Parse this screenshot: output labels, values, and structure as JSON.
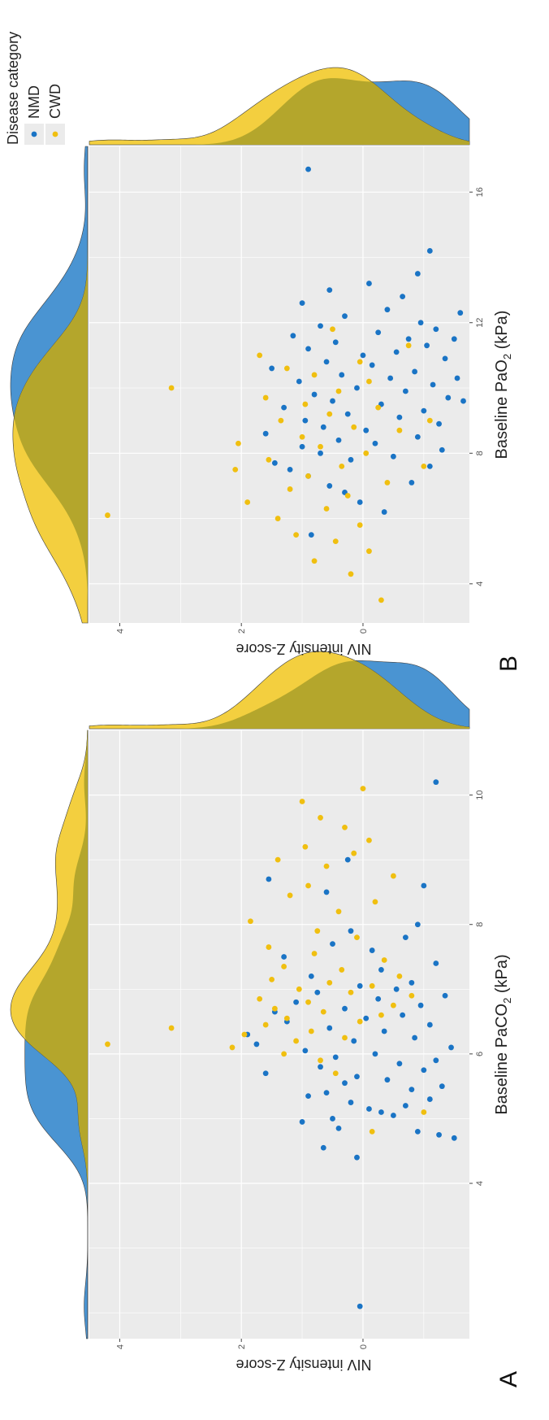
{
  "panels": [
    {
      "letter": "A",
      "xlabel_main": "Baseline PaCO",
      "xlabel_sub": "2",
      "xlabel_unit": " (kPa)"
    },
    {
      "letter": "B",
      "xlabel_main": "Baseline PaO",
      "xlabel_sub": "2",
      "xlabel_unit": " (kPa)"
    }
  ],
  "ylabel": "NIV intensity Z-score",
  "legend": {
    "title": "Disease category",
    "items": [
      {
        "label": "NMD",
        "color": "#1a74c5"
      },
      {
        "label": "CWD",
        "color": "#f0bf10"
      }
    ]
  },
  "colors": {
    "NMD": "#1a74c5",
    "CWD": "#f0bf10",
    "NMD_density": "#4a94d2",
    "CWD_density": "#f3cf3f",
    "overlap_density": "#b4a62c",
    "panel_bg": "#ebebeb",
    "grid": "#ffffff"
  },
  "chart_data": [
    {
      "type": "scatter",
      "panel": "A",
      "xlabel": "Baseline PaCO2 (kPa)",
      "ylabel": "NIV intensity Z-score",
      "xlim": [
        1.6,
        11.0
      ],
      "ylim": [
        -1.75,
        4.5
      ],
      "xticks": [
        4,
        6,
        8,
        10
      ],
      "yticks": [
        0,
        2,
        4
      ],
      "grid": true,
      "marginal_density": true,
      "series": [
        {
          "name": "NMD",
          "points": [
            [
              2.1,
              0.05
            ],
            [
              4.4,
              0.1
            ],
            [
              4.55,
              0.65
            ],
            [
              4.7,
              -1.5
            ],
            [
              4.75,
              -1.25
            ],
            [
              4.8,
              -0.9
            ],
            [
              4.85,
              0.4
            ],
            [
              4.95,
              1.0
            ],
            [
              5.0,
              0.5
            ],
            [
              5.05,
              -0.5
            ],
            [
              5.1,
              -0.3
            ],
            [
              5.15,
              -0.1
            ],
            [
              5.2,
              -0.7
            ],
            [
              5.25,
              0.2
            ],
            [
              5.3,
              -1.1
            ],
            [
              5.35,
              0.9
            ],
            [
              5.4,
              0.6
            ],
            [
              5.45,
              -0.8
            ],
            [
              5.5,
              -1.3
            ],
            [
              5.55,
              0.3
            ],
            [
              5.6,
              -0.4
            ],
            [
              5.65,
              0.1
            ],
            [
              5.7,
              1.6
            ],
            [
              5.75,
              -1.0
            ],
            [
              5.8,
              0.7
            ],
            [
              5.85,
              -0.6
            ],
            [
              5.9,
              -1.2
            ],
            [
              5.95,
              0.45
            ],
            [
              6.0,
              -0.2
            ],
            [
              6.05,
              0.95
            ],
            [
              6.1,
              -1.45
            ],
            [
              6.15,
              1.75
            ],
            [
              6.2,
              0.15
            ],
            [
              6.25,
              -0.85
            ],
            [
              6.3,
              1.9
            ],
            [
              6.35,
              -0.35
            ],
            [
              6.4,
              0.55
            ],
            [
              6.45,
              -1.1
            ],
            [
              6.5,
              1.25
            ],
            [
              6.55,
              -0.05
            ],
            [
              6.6,
              -0.65
            ],
            [
              6.65,
              1.45
            ],
            [
              6.7,
              0.3
            ],
            [
              6.75,
              -0.95
            ],
            [
              6.8,
              1.1
            ],
            [
              6.85,
              -0.25
            ],
            [
              6.9,
              -1.35
            ],
            [
              6.95,
              0.75
            ],
            [
              7.0,
              -0.55
            ],
            [
              7.05,
              0.05
            ],
            [
              7.1,
              -0.8
            ],
            [
              7.2,
              0.85
            ],
            [
              7.3,
              -0.3
            ],
            [
              7.4,
              -1.2
            ],
            [
              7.5,
              1.3
            ],
            [
              7.6,
              -0.15
            ],
            [
              7.7,
              0.5
            ],
            [
              7.8,
              -0.7
            ],
            [
              7.9,
              0.2
            ],
            [
              8.0,
              -0.9
            ],
            [
              8.5,
              0.6
            ],
            [
              8.6,
              -1.0
            ],
            [
              8.7,
              1.55
            ],
            [
              9.0,
              0.25
            ],
            [
              10.2,
              -1.2
            ]
          ]
        },
        {
          "name": "CWD",
          "points": [
            [
              4.8,
              -0.15
            ],
            [
              5.1,
              -1.0
            ],
            [
              5.7,
              0.45
            ],
            [
              5.9,
              0.7
            ],
            [
              6.0,
              1.3
            ],
            [
              6.1,
              2.15
            ],
            [
              6.15,
              4.2
            ],
            [
              6.2,
              1.1
            ],
            [
              6.25,
              0.3
            ],
            [
              6.3,
              1.95
            ],
            [
              6.35,
              0.85
            ],
            [
              6.4,
              3.15
            ],
            [
              6.45,
              1.6
            ],
            [
              6.5,
              0.05
            ],
            [
              6.55,
              1.25
            ],
            [
              6.6,
              -0.3
            ],
            [
              6.65,
              0.65
            ],
            [
              6.7,
              1.45
            ],
            [
              6.75,
              -0.5
            ],
            [
              6.8,
              0.9
            ],
            [
              6.85,
              1.7
            ],
            [
              6.9,
              -0.8
            ],
            [
              6.95,
              0.2
            ],
            [
              7.0,
              1.05
            ],
            [
              7.05,
              -0.15
            ],
            [
              7.1,
              0.55
            ],
            [
              7.15,
              1.5
            ],
            [
              7.2,
              -0.6
            ],
            [
              7.3,
              0.35
            ],
            [
              7.35,
              1.3
            ],
            [
              7.45,
              -0.35
            ],
            [
              7.55,
              0.8
            ],
            [
              7.65,
              1.55
            ],
            [
              7.8,
              0.1
            ],
            [
              7.9,
              0.75
            ],
            [
              8.05,
              1.85
            ],
            [
              8.2,
              0.4
            ],
            [
              8.35,
              -0.2
            ],
            [
              8.45,
              1.2
            ],
            [
              8.6,
              0.9
            ],
            [
              8.75,
              -0.5
            ],
            [
              8.9,
              0.6
            ],
            [
              9.0,
              1.4
            ],
            [
              9.1,
              0.15
            ],
            [
              9.2,
              0.95
            ],
            [
              9.3,
              -0.1
            ],
            [
              9.5,
              0.3
            ],
            [
              9.65,
              0.7
            ],
            [
              9.9,
              1.0
            ],
            [
              10.1,
              0.0
            ]
          ]
        }
      ]
    },
    {
      "type": "scatter",
      "panel": "B",
      "xlabel": "Baseline PaO2 (kPa)",
      "ylabel": "NIV intensity Z-score",
      "xlim": [
        2.8,
        17.4
      ],
      "ylim": [
        -1.75,
        4.5
      ],
      "xticks": [
        4,
        8,
        12,
        16
      ],
      "yticks": [
        0,
        2,
        4
      ],
      "grid": true,
      "marginal_density": true,
      "series": [
        {
          "name": "NMD",
          "points": [
            [
              6.2,
              -0.35
            ],
            [
              6.5,
              0.05
            ],
            [
              6.8,
              0.3
            ],
            [
              7.0,
              0.55
            ],
            [
              7.1,
              -0.8
            ],
            [
              7.3,
              0.9
            ],
            [
              7.5,
              1.2
            ],
            [
              7.6,
              -1.1
            ],
            [
              7.7,
              1.45
            ],
            [
              7.8,
              0.2
            ],
            [
              7.9,
              -0.5
            ],
            [
              8.0,
              0.7
            ],
            [
              8.1,
              -1.3
            ],
            [
              8.2,
              1.0
            ],
            [
              8.3,
              -0.2
            ],
            [
              8.4,
              0.4
            ],
            [
              8.5,
              -0.9
            ],
            [
              8.6,
              1.6
            ],
            [
              8.7,
              -0.05
            ],
            [
              8.8,
              0.65
            ],
            [
              8.9,
              -1.25
            ],
            [
              9.0,
              0.95
            ],
            [
              9.1,
              -0.6
            ],
            [
              9.2,
              0.25
            ],
            [
              9.3,
              -1.0
            ],
            [
              9.4,
              1.3
            ],
            [
              9.5,
              -0.3
            ],
            [
              9.6,
              0.5
            ],
            [
              9.7,
              -1.4
            ],
            [
              9.8,
              0.8
            ],
            [
              9.9,
              -0.7
            ],
            [
              10.0,
              0.1
            ],
            [
              10.1,
              -1.15
            ],
            [
              10.2,
              1.05
            ],
            [
              10.3,
              -0.45
            ],
            [
              10.4,
              0.35
            ],
            [
              10.5,
              -0.85
            ],
            [
              10.6,
              1.5
            ],
            [
              10.7,
              -0.15
            ],
            [
              10.8,
              0.6
            ],
            [
              10.9,
              -1.35
            ],
            [
              11.0,
              0.0
            ],
            [
              11.1,
              -0.55
            ],
            [
              11.2,
              0.9
            ],
            [
              11.3,
              -1.05
            ],
            [
              11.4,
              0.45
            ],
            [
              11.5,
              -0.75
            ],
            [
              11.6,
              1.15
            ],
            [
              11.7,
              -0.25
            ],
            [
              11.8,
              -1.2
            ],
            [
              11.9,
              0.7
            ],
            [
              12.0,
              -0.95
            ],
            [
              12.2,
              0.3
            ],
            [
              12.4,
              -0.4
            ],
            [
              12.6,
              1.0
            ],
            [
              12.8,
              -0.65
            ],
            [
              13.0,
              0.55
            ],
            [
              13.2,
              -0.1
            ],
            [
              13.5,
              -0.9
            ],
            [
              14.2,
              -1.1
            ],
            [
              16.7,
              0.9
            ],
            [
              5.5,
              0.85
            ],
            [
              9.6,
              -1.65
            ],
            [
              10.3,
              -1.55
            ],
            [
              11.5,
              -1.5
            ],
            [
              12.3,
              -1.6
            ]
          ]
        },
        {
          "name": "CWD",
          "points": [
            [
              3.5,
              -0.3
            ],
            [
              4.3,
              0.2
            ],
            [
              4.7,
              0.8
            ],
            [
              5.0,
              -0.1
            ],
            [
              5.3,
              0.45
            ],
            [
              5.5,
              1.1
            ],
            [
              5.8,
              0.05
            ],
            [
              6.0,
              1.4
            ],
            [
              6.1,
              4.2
            ],
            [
              6.3,
              0.6
            ],
            [
              6.5,
              1.9
            ],
            [
              6.7,
              0.25
            ],
            [
              6.9,
              1.2
            ],
            [
              7.1,
              -0.4
            ],
            [
              7.3,
              0.9
            ],
            [
              7.5,
              2.1
            ],
            [
              7.6,
              0.35
            ],
            [
              7.8,
              1.55
            ],
            [
              8.0,
              -0.05
            ],
            [
              8.2,
              0.7
            ],
            [
              8.3,
              2.05
            ],
            [
              8.5,
              1.0
            ],
            [
              8.7,
              -0.6
            ],
            [
              8.8,
              0.15
            ],
            [
              9.0,
              1.35
            ],
            [
              9.2,
              0.55
            ],
            [
              9.4,
              -0.25
            ],
            [
              9.5,
              0.95
            ],
            [
              9.7,
              1.6
            ],
            [
              9.9,
              0.4
            ],
            [
              10.0,
              3.15
            ],
            [
              10.2,
              -0.1
            ],
            [
              10.4,
              0.8
            ],
            [
              10.6,
              1.25
            ],
            [
              10.8,
              0.05
            ],
            [
              11.0,
              1.7
            ],
            [
              11.3,
              -0.75
            ],
            [
              11.8,
              0.5
            ],
            [
              9.0,
              -1.1
            ],
            [
              7.6,
              -1.0
            ]
          ]
        }
      ]
    }
  ]
}
